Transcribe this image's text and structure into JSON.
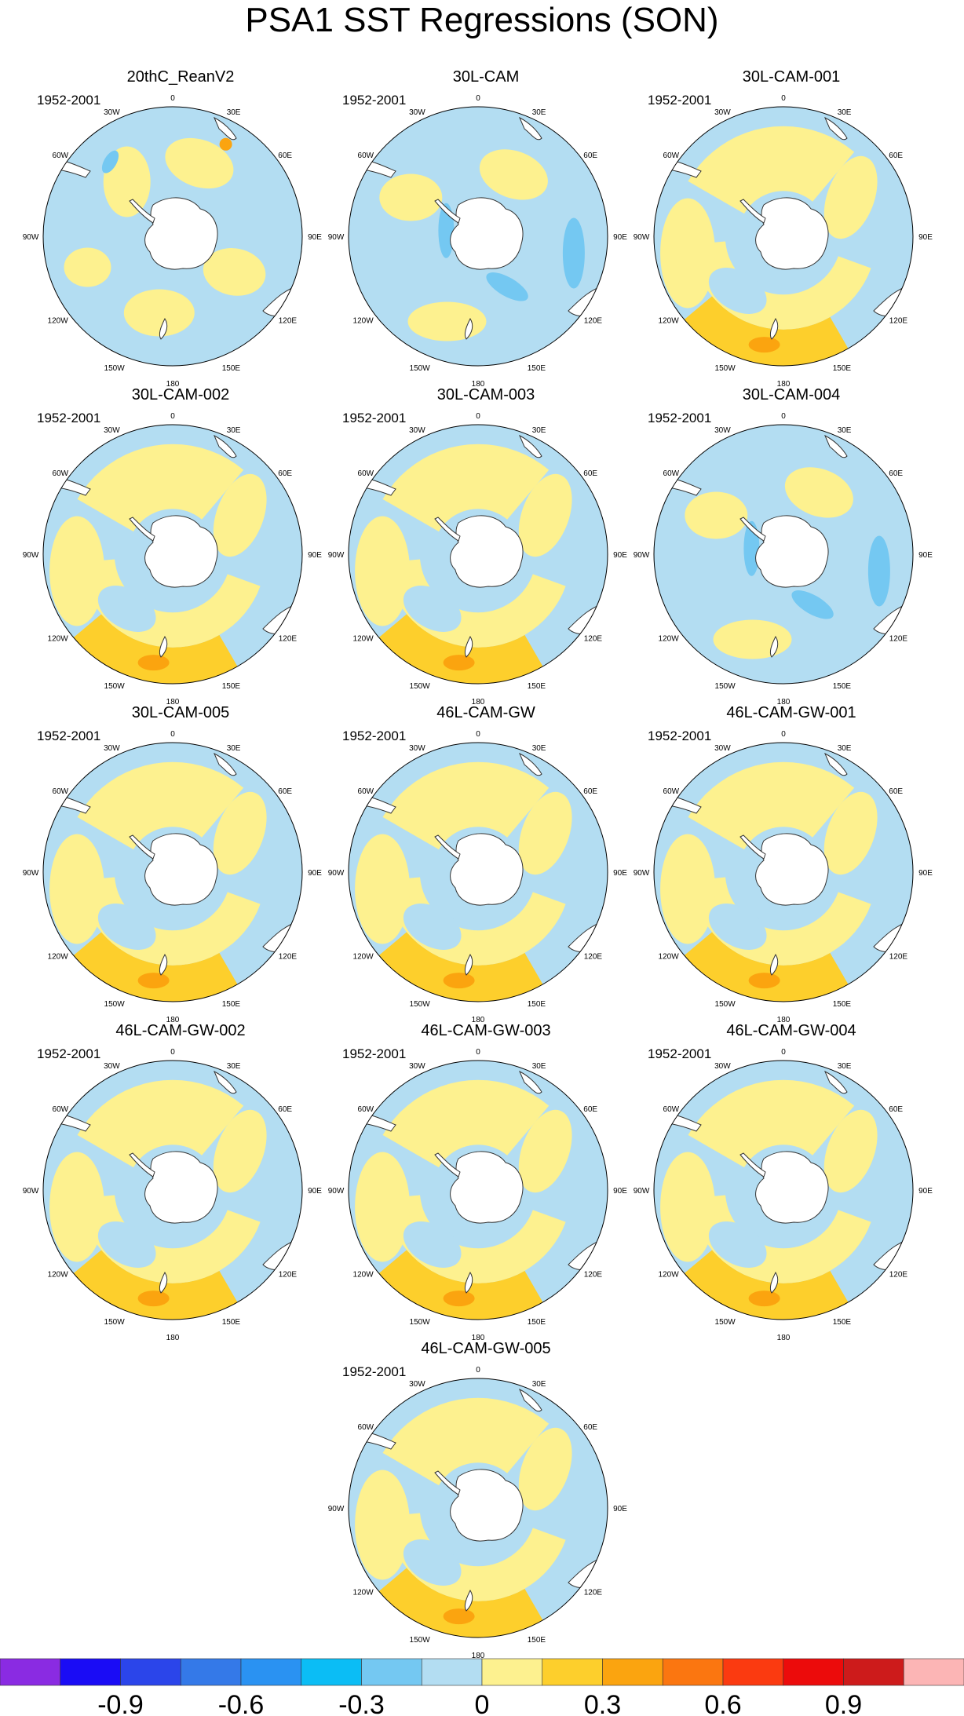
{
  "title": "PSA1 SST Regressions (SON)",
  "period": "1952-2001",
  "lon_labels": [
    "0",
    "30E",
    "60E",
    "90E",
    "120E",
    "150E",
    "180",
    "150W",
    "120W",
    "90W",
    "60W",
    "30W"
  ],
  "panels": [
    {
      "name": "20thC_ReanV2",
      "period": "1952-2001",
      "pattern": "weak-mixed"
    },
    {
      "name": "30L-CAM",
      "period": "1952-2001",
      "pattern": "mostly-negative"
    },
    {
      "name": "30L-CAM-001",
      "period": "1952-2001",
      "pattern": "positive-pacific"
    },
    {
      "name": "30L-CAM-002",
      "period": "1952-2001",
      "pattern": "positive-pacific"
    },
    {
      "name": "30L-CAM-003",
      "period": "1952-2001",
      "pattern": "positive-pacific"
    },
    {
      "name": "30L-CAM-004",
      "period": "1952-2001",
      "pattern": "mostly-negative"
    },
    {
      "name": "30L-CAM-005",
      "period": "1952-2001",
      "pattern": "positive-pacific"
    },
    {
      "name": "46L-CAM-GW",
      "period": "1952-2001",
      "pattern": "positive-pacific"
    },
    {
      "name": "46L-CAM-GW-001",
      "period": "1952-2001",
      "pattern": "positive-pacific"
    },
    {
      "name": "46L-CAM-GW-002",
      "period": "1952-2001",
      "pattern": "positive-pacific"
    },
    {
      "name": "46L-CAM-GW-003",
      "period": "1952-2001",
      "pattern": "positive-pacific"
    },
    {
      "name": "46L-CAM-GW-004",
      "period": "1952-2001",
      "pattern": "positive-pacific"
    },
    {
      "name": "46L-CAM-GW-005",
      "period": "1952-2001",
      "pattern": "positive-pacific"
    }
  ],
  "colorbar": {
    "colors": [
      "#8a2be2",
      "#1a0cf5",
      "#2b45ea",
      "#3479e8",
      "#2a92f2",
      "#0bbdf5",
      "#74c8f2",
      "#b3ddf2",
      "#fdf18f",
      "#fdcf2c",
      "#fba40f",
      "#fb7610",
      "#fb3a10",
      "#ec0b0b",
      "#cd1b1b",
      "#fcb5b5"
    ],
    "tick_labels": [
      "-0.9",
      "-0.6",
      "-0.3",
      "0",
      "0.3",
      "0.6",
      "0.9"
    ]
  }
}
